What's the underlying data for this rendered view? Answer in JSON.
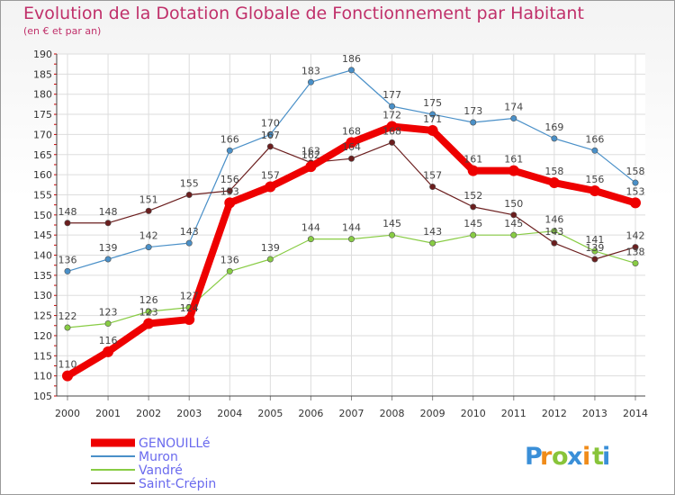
{
  "chart_data": {
    "type": "line",
    "title": "Evolution de la Dotation Globale de Fonctionnement par Habitant",
    "subtitle": "(en € et par an)",
    "x": [
      "2000",
      "2001",
      "2002",
      "2003",
      "2004",
      "2005",
      "2006",
      "2007",
      "2008",
      "2009",
      "2010",
      "2011",
      "2012",
      "2013",
      "2014"
    ],
    "ylim": [
      105,
      190
    ],
    "yticks": [
      105,
      110,
      115,
      120,
      125,
      130,
      135,
      140,
      145,
      150,
      155,
      160,
      165,
      170,
      175,
      180,
      185,
      190
    ],
    "grid": true,
    "legend_position": "bottom-left",
    "series": [
      {
        "name": "GENOUILLé",
        "color": "#ee0000",
        "values": [
          110,
          116,
          123,
          124,
          153,
          157,
          162,
          168,
          172,
          171,
          161,
          161,
          158,
          156,
          153
        ]
      },
      {
        "name": "Muron",
        "color": "#4a90c8",
        "values": [
          136,
          139,
          142,
          143,
          166,
          170,
          183,
          186,
          177,
          175,
          173,
          174,
          169,
          166,
          158
        ]
      },
      {
        "name": "Vandré",
        "color": "#88cc44",
        "values": [
          122,
          123,
          126,
          127,
          136,
          139,
          144,
          144,
          145,
          143,
          145,
          145,
          146,
          141,
          138
        ]
      },
      {
        "name": "Saint-Crépin",
        "color": "#6b1e1e",
        "values": [
          148,
          148,
          151,
          155,
          156,
          167,
          163,
          164,
          168,
          157,
          152,
          150,
          143,
          139,
          142
        ]
      }
    ]
  },
  "brand": {
    "letters": [
      "P",
      "r",
      "o",
      "x",
      "i",
      "t",
      "i"
    ],
    "colors": [
      "#3a8fd8",
      "#f08c1a",
      "#88c43a",
      "#3a8fd8",
      "#f08c1a",
      "#88c43a",
      "#3a8fd8"
    ]
  }
}
